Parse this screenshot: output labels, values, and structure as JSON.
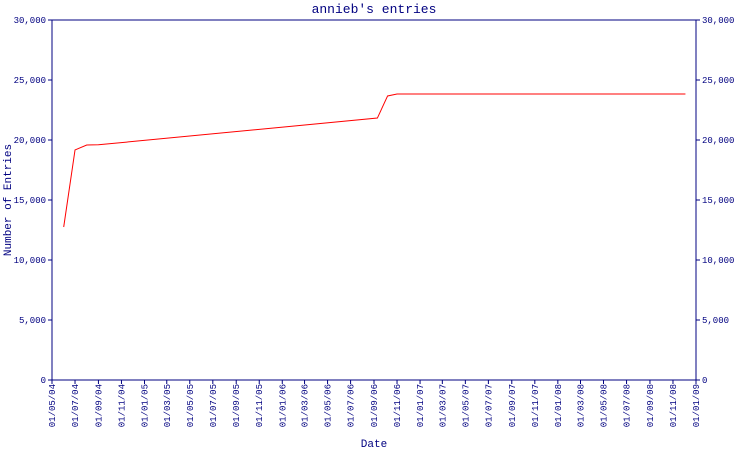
{
  "chart_data": {
    "type": "line",
    "title": "annieb's entries",
    "x_label": "Date",
    "y_label": "Number of Entries",
    "x": [
      "01/06/04",
      "01/07/04",
      "01/08/04",
      "01/09/04",
      "10/09/06",
      "07/10/06",
      "01/11/06",
      "04/12/08"
    ],
    "series": [
      {
        "name": "annieb",
        "color": "#ff0000",
        "values": [
          12750,
          19170,
          19580,
          19600,
          21830,
          23670,
          23830,
          23830
        ]
      }
    ],
    "xlim": [
      "01/05/04",
      "01/01/09"
    ],
    "xticks": [
      "01/05/04",
      "01/07/04",
      "01/09/04",
      "01/11/04",
      "01/01/05",
      "01/03/05",
      "01/05/05",
      "01/07/05",
      "01/09/05",
      "01/11/05",
      "01/01/06",
      "01/03/06",
      "01/05/06",
      "01/07/06",
      "01/09/06",
      "01/11/06",
      "01/01/07",
      "01/03/07",
      "01/05/07",
      "01/07/07",
      "01/09/07",
      "01/11/07",
      "01/01/08",
      "01/03/08",
      "01/05/08",
      "01/07/08",
      "01/09/08",
      "01/11/08",
      "01/01/09"
    ],
    "ylim": [
      0,
      30000
    ],
    "yticks": [
      0,
      {
        "value": 5000,
        "label": "5,000"
      },
      {
        "value": 10000,
        "label": "10,000"
      },
      {
        "value": 15000,
        "label": "15,000"
      },
      {
        "value": 20000,
        "label": "20,000"
      },
      {
        "value": 25000,
        "label": "25,000"
      },
      {
        "value": 30000,
        "label": "30,000"
      }
    ],
    "axis_color": "#000080"
  }
}
